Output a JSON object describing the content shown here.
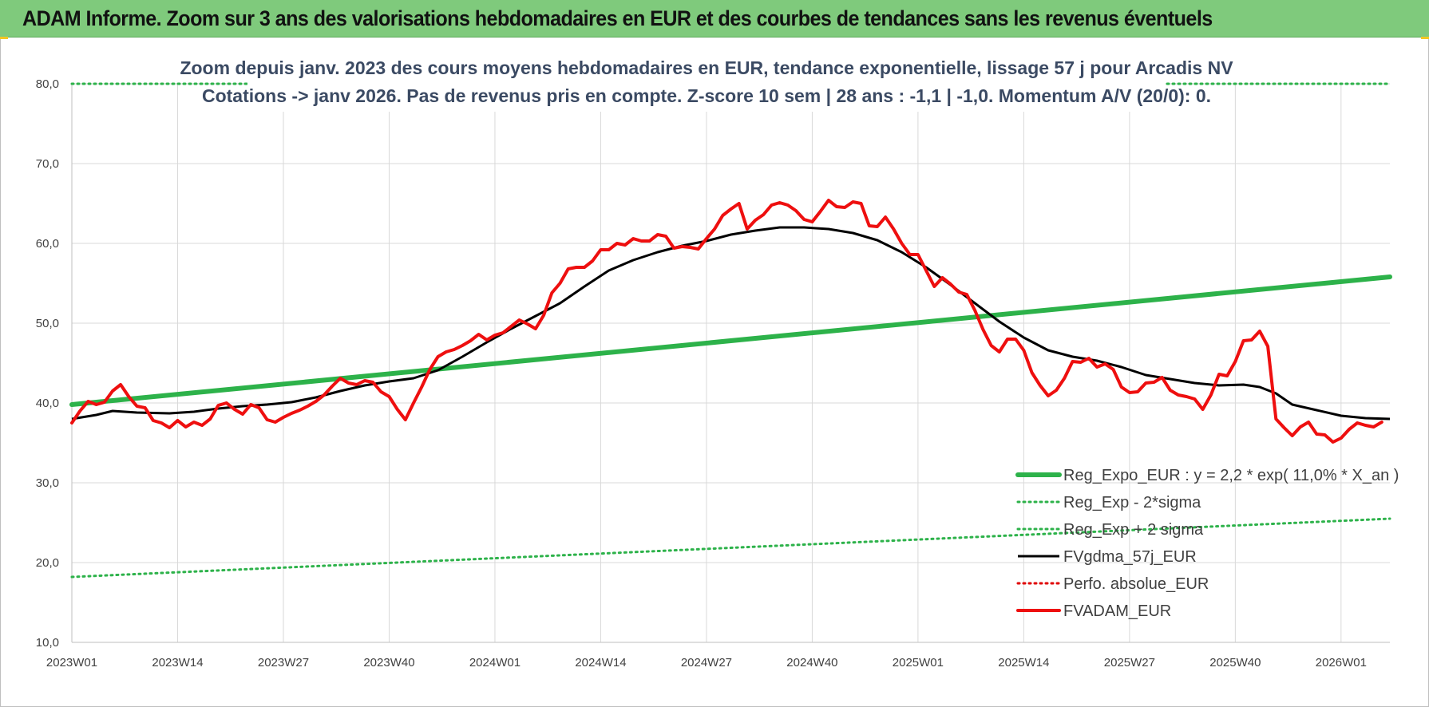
{
  "header": {
    "title": "ADAM Informe. Zoom sur 3 ans des valorisations hebdomadaires en EUR et des courbes de tendances sans les revenus éventuels"
  },
  "colors": {
    "header_bg": "#7fca7c",
    "reg_expo": "#2db24a",
    "sigma_bands": "#2db24a",
    "fvgdma": "#000000",
    "perfo": "#e00000",
    "fvadam": "#ee0f0f",
    "grid": "#d9d9d9"
  },
  "chart_data": {
    "type": "line",
    "title_lines": [
      "Zoom depuis janv. 2023 des cours moyens hebdomadaires en EUR, tendance exponentielle, lissage 57 j pour Arcadis NV",
      "Cotations -> janv 2026. Pas de revenus pris en compte. Z-score 10 sem | 28 ans : -1,1 | -1,0. Momentum A/V (20/0): 0."
    ],
    "ylim": [
      10,
      80
    ],
    "yticks": [
      "10,0",
      "20,0",
      "30,0",
      "40,0",
      "50,0",
      "60,0",
      "70,0",
      "80,0"
    ],
    "ytick_values": [
      10,
      20,
      30,
      40,
      50,
      60,
      70,
      80
    ],
    "x_range_weeks": [
      0,
      162
    ],
    "xticks": [
      {
        "label": "2023W01",
        "week": 0
      },
      {
        "label": "2023W14",
        "week": 13
      },
      {
        "label": "2023W27",
        "week": 26
      },
      {
        "label": "2023W40",
        "week": 39
      },
      {
        "label": "2024W01",
        "week": 52
      },
      {
        "label": "2024W14",
        "week": 65
      },
      {
        "label": "2024W27",
        "week": 78
      },
      {
        "label": "2024W40",
        "week": 91
      },
      {
        "label": "2025W01",
        "week": 104
      },
      {
        "label": "2025W14",
        "week": 117
      },
      {
        "label": "2025W27",
        "week": 130
      },
      {
        "label": "2025W40",
        "week": 143
      },
      {
        "label": "2026W01",
        "week": 156
      }
    ],
    "series": [
      {
        "name": "Reg_Expo_EUR : y = 2,2 * exp( 11,0% *  X_an )",
        "style": "solid-thick",
        "color": "#2db24a",
        "points": [
          [
            0,
            39.8
          ],
          [
            162,
            55.8
          ]
        ]
      },
      {
        "name": "Reg_Exp - 2*sigma",
        "style": "dotted",
        "color": "#2db24a",
        "points": [
          [
            0,
            18.2
          ],
          [
            162,
            25.5
          ]
        ]
      },
      {
        "name": "Reg_Exp + 2 sigma",
        "style": "dotted",
        "color": "#2db24a",
        "points": [
          [
            0,
            80.0
          ],
          [
            162,
            80.0
          ]
        ]
      },
      {
        "name": "FVgdma_57j_EUR",
        "style": "solid",
        "color": "#000000",
        "points": [
          [
            0,
            38.0
          ],
          [
            3,
            38.5
          ],
          [
            5,
            39.0
          ],
          [
            8,
            38.8
          ],
          [
            12,
            38.7
          ],
          [
            15,
            38.9
          ],
          [
            18,
            39.3
          ],
          [
            21,
            39.6
          ],
          [
            24,
            39.8
          ],
          [
            27,
            40.1
          ],
          [
            30,
            40.7
          ],
          [
            33,
            41.5
          ],
          [
            36,
            42.2
          ],
          [
            39,
            42.7
          ],
          [
            42,
            43.1
          ],
          [
            45,
            44.1
          ],
          [
            48,
            45.8
          ],
          [
            51,
            47.6
          ],
          [
            54,
            49.3
          ],
          [
            57,
            50.9
          ],
          [
            60,
            52.5
          ],
          [
            63,
            54.6
          ],
          [
            66,
            56.6
          ],
          [
            69,
            57.9
          ],
          [
            72,
            58.9
          ],
          [
            75,
            59.7
          ],
          [
            78,
            60.3
          ],
          [
            81,
            61.1
          ],
          [
            84,
            61.6
          ],
          [
            87,
            62.0
          ],
          [
            90,
            62.0
          ],
          [
            93,
            61.8
          ],
          [
            96,
            61.3
          ],
          [
            99,
            60.4
          ],
          [
            102,
            58.9
          ],
          [
            105,
            57.0
          ],
          [
            108,
            54.8
          ],
          [
            111,
            52.5
          ],
          [
            114,
            50.2
          ],
          [
            117,
            48.2
          ],
          [
            120,
            46.6
          ],
          [
            123,
            45.8
          ],
          [
            126,
            45.3
          ],
          [
            129,
            44.5
          ],
          [
            132,
            43.5
          ],
          [
            135,
            43.0
          ],
          [
            138,
            42.5
          ],
          [
            141,
            42.2
          ],
          [
            144,
            42.3
          ],
          [
            146,
            42.0
          ],
          [
            148,
            41.2
          ],
          [
            150,
            39.8
          ],
          [
            153,
            39.1
          ],
          [
            156,
            38.4
          ],
          [
            159,
            38.1
          ],
          [
            162,
            38.0
          ]
        ]
      },
      {
        "name": "Perfo. absolue_EUR",
        "style": "dotted",
        "color": "#e00000",
        "points": []
      },
      {
        "name": "FVADAM_EUR",
        "style": "solid-thick",
        "color": "#ee0f0f",
        "points": [
          [
            0,
            37.5
          ],
          [
            1,
            39.0
          ],
          [
            2,
            40.2
          ],
          [
            3,
            39.8
          ],
          [
            4,
            40.1
          ],
          [
            5,
            41.5
          ],
          [
            6,
            42.3
          ],
          [
            7,
            40.8
          ],
          [
            8,
            39.6
          ],
          [
            9,
            39.4
          ],
          [
            10,
            37.8
          ],
          [
            11,
            37.5
          ],
          [
            12,
            36.9
          ],
          [
            13,
            37.8
          ],
          [
            14,
            37.0
          ],
          [
            15,
            37.6
          ],
          [
            16,
            37.2
          ],
          [
            17,
            38.0
          ],
          [
            18,
            39.7
          ],
          [
            19,
            40.0
          ],
          [
            20,
            39.2
          ],
          [
            21,
            38.6
          ],
          [
            22,
            39.8
          ],
          [
            23,
            39.4
          ],
          [
            24,
            37.9
          ],
          [
            25,
            37.6
          ],
          [
            26,
            38.2
          ],
          [
            27,
            38.7
          ],
          [
            28,
            39.1
          ],
          [
            29,
            39.6
          ],
          [
            30,
            40.2
          ],
          [
            31,
            41.0
          ],
          [
            32,
            42.1
          ],
          [
            33,
            43.1
          ],
          [
            34,
            42.5
          ],
          [
            35,
            42.3
          ],
          [
            36,
            42.8
          ],
          [
            37,
            42.6
          ],
          [
            38,
            41.4
          ],
          [
            39,
            40.8
          ],
          [
            40,
            39.2
          ],
          [
            41,
            37.9
          ],
          [
            42,
            40.0
          ],
          [
            43,
            42.0
          ],
          [
            44,
            44.2
          ],
          [
            45,
            45.8
          ],
          [
            46,
            46.4
          ],
          [
            47,
            46.7
          ],
          [
            48,
            47.2
          ],
          [
            49,
            47.8
          ],
          [
            50,
            48.6
          ],
          [
            51,
            47.9
          ],
          [
            52,
            48.5
          ],
          [
            53,
            48.8
          ],
          [
            54,
            49.6
          ],
          [
            55,
            50.4
          ],
          [
            56,
            49.9
          ],
          [
            57,
            49.3
          ],
          [
            58,
            51.0
          ],
          [
            59,
            53.8
          ],
          [
            60,
            55.0
          ],
          [
            61,
            56.8
          ],
          [
            62,
            57.0
          ],
          [
            63,
            57.0
          ],
          [
            64,
            57.8
          ],
          [
            65,
            59.2
          ],
          [
            66,
            59.2
          ],
          [
            67,
            60.0
          ],
          [
            68,
            59.8
          ],
          [
            69,
            60.6
          ],
          [
            70,
            60.3
          ],
          [
            71,
            60.3
          ],
          [
            72,
            61.1
          ],
          [
            73,
            60.9
          ],
          [
            74,
            59.4
          ],
          [
            75,
            59.6
          ],
          [
            76,
            59.5
          ],
          [
            77,
            59.3
          ],
          [
            78,
            60.6
          ],
          [
            79,
            61.8
          ],
          [
            80,
            63.5
          ],
          [
            81,
            64.3
          ],
          [
            82,
            65.0
          ],
          [
            83,
            61.8
          ],
          [
            84,
            62.9
          ],
          [
            85,
            63.6
          ],
          [
            86,
            64.8
          ],
          [
            87,
            65.1
          ],
          [
            88,
            64.8
          ],
          [
            89,
            64.1
          ],
          [
            90,
            63.0
          ],
          [
            91,
            62.7
          ],
          [
            92,
            64.0
          ],
          [
            93,
            65.4
          ],
          [
            94,
            64.6
          ],
          [
            95,
            64.5
          ],
          [
            96,
            65.2
          ],
          [
            97,
            65.0
          ],
          [
            98,
            62.2
          ],
          [
            99,
            62.1
          ],
          [
            100,
            63.3
          ],
          [
            101,
            61.8
          ],
          [
            102,
            60.0
          ],
          [
            103,
            58.6
          ],
          [
            104,
            58.6
          ],
          [
            105,
            56.6
          ],
          [
            106,
            54.6
          ],
          [
            107,
            55.7
          ],
          [
            108,
            54.9
          ],
          [
            109,
            53.9
          ],
          [
            110,
            53.6
          ],
          [
            111,
            51.6
          ],
          [
            112,
            49.2
          ],
          [
            113,
            47.2
          ],
          [
            114,
            46.4
          ],
          [
            115,
            48.0
          ],
          [
            116,
            48.0
          ],
          [
            117,
            46.6
          ],
          [
            118,
            43.8
          ],
          [
            119,
            42.2
          ],
          [
            120,
            40.9
          ],
          [
            121,
            41.6
          ],
          [
            122,
            43.1
          ],
          [
            123,
            45.2
          ],
          [
            124,
            45.1
          ],
          [
            125,
            45.6
          ],
          [
            126,
            44.5
          ],
          [
            127,
            44.9
          ],
          [
            128,
            44.2
          ],
          [
            129,
            42.0
          ],
          [
            130,
            41.3
          ],
          [
            131,
            41.4
          ],
          [
            132,
            42.5
          ],
          [
            133,
            42.6
          ],
          [
            134,
            43.2
          ],
          [
            135,
            41.6
          ],
          [
            136,
            41.0
          ],
          [
            137,
            40.8
          ],
          [
            138,
            40.5
          ],
          [
            139,
            39.2
          ],
          [
            140,
            41.0
          ],
          [
            141,
            43.6
          ],
          [
            142,
            43.4
          ],
          [
            143,
            45.2
          ],
          [
            144,
            47.8
          ],
          [
            145,
            47.9
          ],
          [
            146,
            49.0
          ],
          [
            147,
            47.1
          ],
          [
            148,
            38.0
          ],
          [
            149,
            36.9
          ],
          [
            150,
            35.9
          ],
          [
            151,
            37.0
          ],
          [
            152,
            37.6
          ],
          [
            153,
            36.1
          ],
          [
            154,
            36.0
          ],
          [
            155,
            35.1
          ],
          [
            156,
            35.6
          ],
          [
            157,
            36.7
          ],
          [
            158,
            37.5
          ],
          [
            159,
            37.2
          ],
          [
            160,
            37.0
          ],
          [
            161,
            37.6
          ]
        ]
      }
    ]
  }
}
